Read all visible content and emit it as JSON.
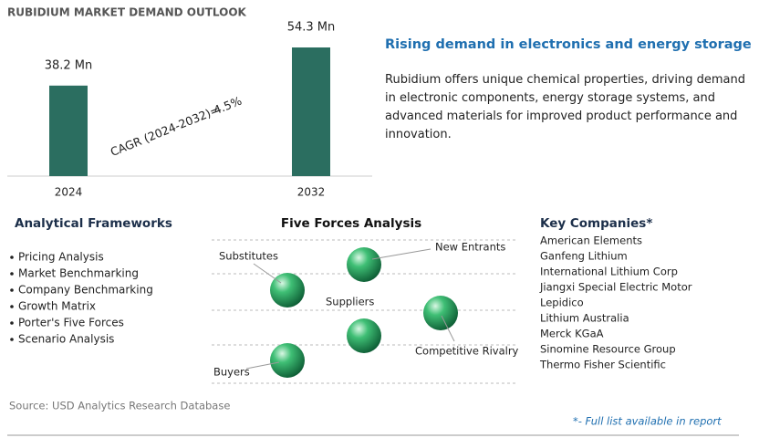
{
  "chart_data": {
    "type": "bar",
    "title": "RUBIDIUM MARKET DEMAND OUTLOOK",
    "categories": [
      "2024",
      "2032"
    ],
    "values": [
      38.2,
      54.3
    ],
    "value_labels": [
      "38.2 Mn",
      "54.3 Mn"
    ],
    "color": "#2b6e60",
    "annotations": [
      "CAGR (2024-2032)=",
      "4.5%"
    ]
  },
  "highlight": {
    "title": "Rising demand in electronics and energy storage",
    "text": "Rubidium offers unique chemical properties, driving demand in electronic components, energy storage systems, and advanced materials for improved product performance and innovation."
  },
  "frameworks": {
    "title": "Analytical Frameworks",
    "items": [
      "Pricing Analysis",
      "Market Benchmarking",
      "Company Benchmarking",
      "Growth Matrix",
      "Porter's Five Forces",
      "Scenario Analysis"
    ]
  },
  "five_forces": {
    "title": "Five Forces Analysis",
    "forces": [
      "Substitutes",
      "New Entrants",
      "Suppliers",
      "Competitive Rivalry",
      "Buyers"
    ]
  },
  "companies": {
    "title": "Key Companies*",
    "items": [
      "American Elements",
      "Ganfeng Lithium",
      "International Lithium Corp",
      "Jiangxi Special Electric Motor",
      "Lepidico",
      "Lithium Australia",
      "Merck KGaA",
      "Sinomine Resource Group",
      "Thermo Fisher Scientific"
    ],
    "note": "*- Full list available in report"
  },
  "source": "Source: USD Analytics Research Database"
}
